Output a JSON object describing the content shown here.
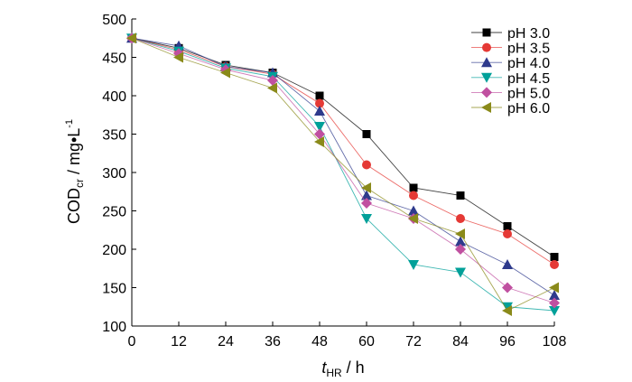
{
  "chart_data": {
    "type": "line",
    "title": "",
    "xlabel": {
      "main": "t",
      "sub": "HR",
      "unit": " / h"
    },
    "ylabel": {
      "main": "COD",
      "sub": "cr",
      "unit": " / mg•L",
      "sup": "-1"
    },
    "x": [
      0,
      12,
      24,
      36,
      48,
      60,
      72,
      84,
      96,
      108
    ],
    "xlim": [
      0,
      108
    ],
    "ylim": [
      100,
      500
    ],
    "xticks": [
      "0",
      "12",
      "24",
      "36",
      "48",
      "60",
      "72",
      "84",
      "96",
      "108"
    ],
    "yticks": [
      "100",
      "150",
      "200",
      "250",
      "300",
      "350",
      "400",
      "450",
      "500"
    ],
    "grid": false,
    "legend": "top-right",
    "series": [
      {
        "name": "pH 3.0",
        "color": "#000000",
        "marker": "square",
        "values": [
          475,
          462,
          440,
          430,
          400,
          350,
          280,
          270,
          230,
          190
        ]
      },
      {
        "name": "pH 3.5",
        "color": "#e53935",
        "marker": "circle",
        "values": [
          475,
          460,
          438,
          428,
          390,
          310,
          270,
          240,
          220,
          180
        ]
      },
      {
        "name": "pH 4.0",
        "color": "#2e3a8c",
        "marker": "triangle-up",
        "values": [
          475,
          465,
          438,
          430,
          380,
          270,
          250,
          210,
          180,
          140
        ]
      },
      {
        "name": "pH 4.5",
        "color": "#00a099",
        "marker": "triangle-down",
        "values": [
          475,
          458,
          436,
          425,
          360,
          240,
          180,
          170,
          125,
          120
        ]
      },
      {
        "name": "pH 5.0",
        "color": "#c050a0",
        "marker": "diamond",
        "values": [
          475,
          455,
          434,
          420,
          350,
          260,
          240,
          200,
          150,
          130
        ]
      },
      {
        "name": "pH 6.0",
        "color": "#8a8a1a",
        "marker": "triangle-left",
        "values": [
          475,
          450,
          430,
          410,
          340,
          280,
          240,
          220,
          120,
          150
        ]
      }
    ]
  }
}
